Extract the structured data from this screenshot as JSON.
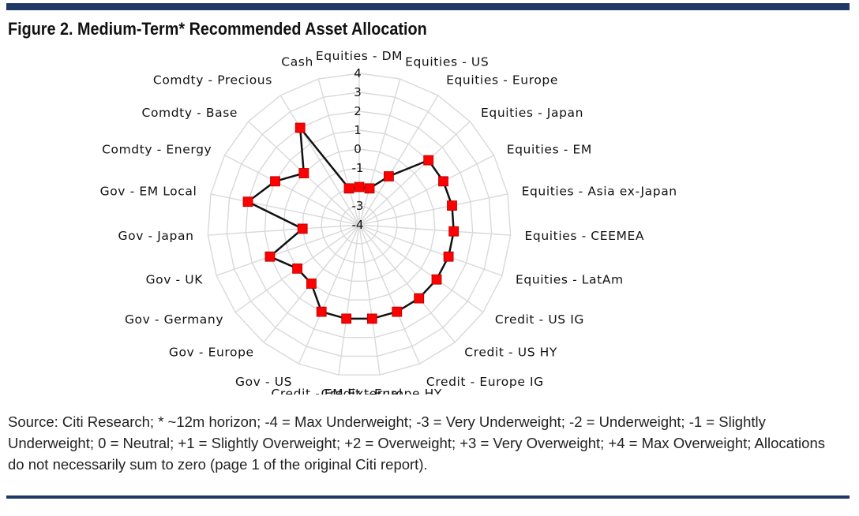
{
  "figure": {
    "title": "Figure 2. Medium-Term* Recommended Asset Allocation",
    "source": "Source: Citi Research; * ~12m horizon; -4 = Max Underweight; -3 = Very Underweight; -2 = Underweight; -1 = Slightly Underweight; 0 = Neutral; +1 = Slightly Overweight; +2 = Overweight; +3 = Very Overweight; +4 = Max Overweight; Allocations do not necessarily sum to zero (page 1 of the original Citi report)."
  },
  "chart_data": {
    "type": "radar",
    "title": "",
    "rlim": [
      -4,
      4
    ],
    "rticks": [
      "4",
      "3",
      "2",
      "1",
      "0",
      "-1",
      "-2",
      "-3",
      "-4"
    ],
    "grid": true,
    "legend": "none",
    "series_color": "#111111",
    "marker_color": "#ff0000",
    "categories": [
      "Equities - DM",
      "Equities - US",
      "Equities - Europe",
      "Equities - Japan",
      "Equities - EM",
      "Equities - Asia ex-Japan",
      "Equities - CEEMEA",
      "Equities - LatAm",
      "Credit - US IG",
      "Credit - US HY",
      "Credit - Europe IG",
      "Credit - Europe HY",
      "Credit - EM External",
      "Gov - US",
      "Gov - Europe",
      "Gov - Germany",
      "Gov - UK",
      "Gov - Japan",
      "Gov - EM Local",
      "Comdty - Energy",
      "Comdty - Base",
      "Comdty - Precious",
      "Cash"
    ],
    "values": [
      -2,
      -2,
      -1,
      1,
      1,
      1,
      1,
      1,
      1,
      1,
      1,
      1,
      1,
      1,
      0,
      0,
      1,
      -1,
      2,
      1,
      0,
      2,
      -2
    ]
  }
}
